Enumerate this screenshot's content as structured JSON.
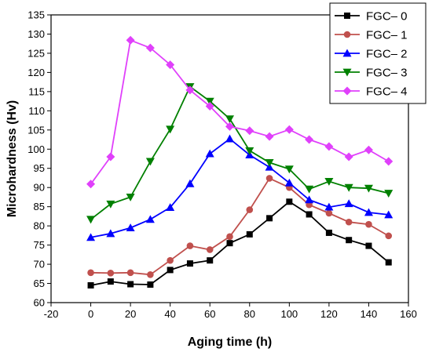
{
  "chart_data": {
    "type": "line",
    "title": "",
    "xlabel": "Aging time (h)",
    "ylabel": "Microhardness (Hv)",
    "xlim": [
      -20,
      160
    ],
    "ylim": [
      60,
      135
    ],
    "xticks": [
      -20,
      0,
      20,
      40,
      60,
      80,
      100,
      120,
      140,
      160
    ],
    "yticks": [
      60,
      65,
      70,
      75,
      80,
      85,
      90,
      95,
      100,
      105,
      110,
      115,
      120,
      125,
      130,
      135
    ],
    "grid": false,
    "legend_position": "top-right",
    "x": [
      0,
      10,
      20,
      30,
      40,
      50,
      60,
      70,
      80,
      90,
      100,
      110,
      120,
      130,
      140,
      150
    ],
    "series": [
      {
        "name": "FGC– 0",
        "color": "#000000",
        "marker": "square",
        "values": [
          64.5,
          65.5,
          64.8,
          64.7,
          68.5,
          70.2,
          71.0,
          75.5,
          77.8,
          82.0,
          86.3,
          83.0,
          78.2,
          76.3,
          74.8,
          70.5
        ]
      },
      {
        "name": "FGC– 1",
        "color": "#c0504d",
        "marker": "circle",
        "values": [
          67.8,
          67.7,
          67.8,
          67.3,
          71.0,
          74.8,
          73.8,
          77.2,
          84.2,
          92.4,
          90.0,
          85.5,
          83.3,
          81.0,
          80.4,
          77.4
        ]
      },
      {
        "name": "FGC– 2",
        "color": "#0000ff",
        "marker": "triangle-up",
        "values": [
          77.0,
          78.0,
          79.5,
          81.7,
          84.8,
          91.0,
          98.8,
          102.7,
          98.5,
          95.3,
          91.2,
          86.8,
          84.9,
          85.8,
          83.5,
          82.9
        ]
      },
      {
        "name": "FGC– 3",
        "color": "#008000",
        "marker": "triangle-down",
        "values": [
          81.7,
          85.7,
          87.5,
          96.8,
          105.2,
          116.3,
          112.5,
          107.9,
          99.6,
          96.5,
          94.8,
          89.6,
          91.6,
          90.0,
          89.8,
          88.5
        ]
      },
      {
        "name": "FGC– 4",
        "color": "#e040fb",
        "marker": "diamond",
        "values": [
          90.9,
          98.0,
          128.4,
          126.4,
          122.0,
          115.4,
          111.2,
          105.9,
          104.8,
          103.3,
          105.1,
          102.5,
          100.7,
          98.0,
          99.8,
          96.8
        ]
      }
    ]
  }
}
